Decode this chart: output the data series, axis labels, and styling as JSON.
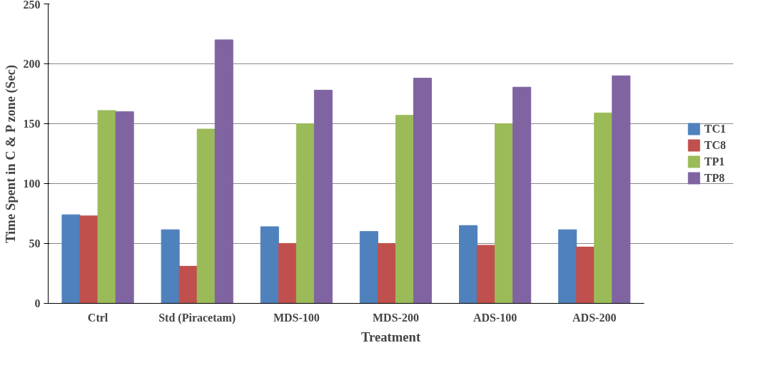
{
  "chart_data": {
    "type": "bar",
    "xlabel": "Treatment",
    "ylabel": "Time Spent in C & P zone (Sec)",
    "categories": [
      "Ctrl",
      "Std (Piracetam)",
      "MDS-100",
      "MDS-200",
      "ADS-100",
      "ADS-200"
    ],
    "series": [
      {
        "name": "TC1",
        "color": "#4f81bd",
        "values": [
          74,
          61.5,
          64,
          60,
          65,
          61.5
        ]
      },
      {
        "name": "TC8",
        "color": "#c0504d",
        "values": [
          73,
          31,
          50,
          50,
          48.5,
          47
        ]
      },
      {
        "name": "TP1",
        "color": "#9bbb59",
        "values": [
          161,
          145.5,
          150,
          157,
          150,
          159
        ]
      },
      {
        "name": "TP8",
        "color": "#8064a2",
        "values": [
          160,
          220,
          178,
          188,
          180.5,
          190
        ]
      }
    ],
    "ylim": [
      0,
      250
    ],
    "yticks": [
      0,
      50,
      100,
      150,
      200,
      250
    ],
    "grid": "y",
    "legend": "right"
  }
}
